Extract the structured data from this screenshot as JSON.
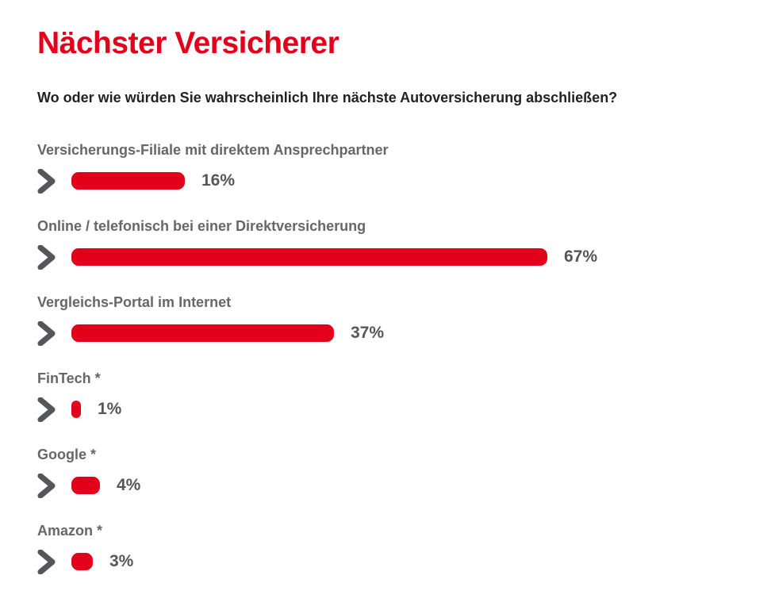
{
  "header": {
    "title": "Nächster Versicherer",
    "question": "Wo oder wie würden Sie wahrscheinlich Ihre nächste Autoversicherung abschließen?"
  },
  "chart_data": {
    "type": "bar",
    "orientation": "horizontal",
    "title": "Nächster Versicherer",
    "subtitle": "Wo oder wie würden Sie wahrscheinlich Ihre nächste Autoversicherung abschließen?",
    "categories": [
      "Versicherungs-Filiale mit direktem Ansprechpartner",
      "Online / telefonisch bei einer Direktversicherung",
      "Vergleichs-Portal im Internet",
      "FinTech *",
      "Google *",
      "Amazon *"
    ],
    "values": [
      16,
      67,
      37,
      1,
      4,
      3
    ],
    "value_labels": [
      "16%",
      "67%",
      "37%",
      "1%",
      "4%",
      "3%"
    ],
    "value_suffix": "%",
    "xlim": [
      0,
      100
    ],
    "grid": false,
    "legend": false,
    "row_marker_icon": "chevron-right-icon"
  },
  "colors": {
    "accent_red": "#e2001a",
    "bar_red": "#e2001a",
    "label_gray": "#66666b",
    "value_gray": "#55565c",
    "icon_gray": "#55565c",
    "question_dark": "#222226"
  }
}
